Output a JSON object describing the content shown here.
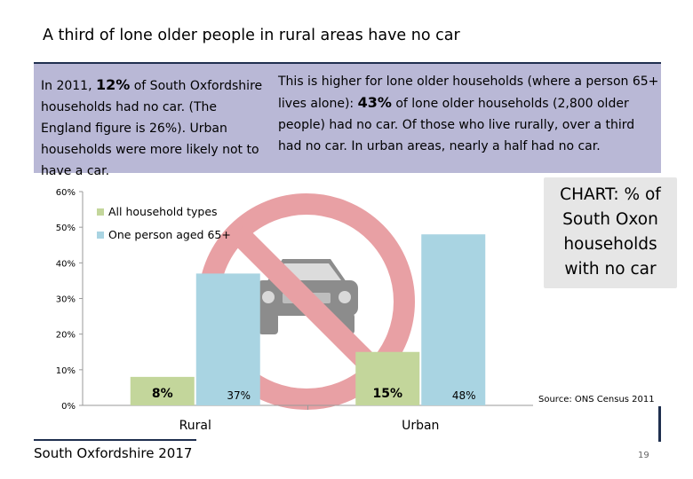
{
  "title": "A third of lone older people in rural areas have no car",
  "info": {
    "left_pre": "In 2011, ",
    "left_stat": "12%",
    "left_post": " of South Oxfordshire households had no car.  (The England figure is 26%).  Urban households were more likely not to have a car.",
    "right_pre": "This is higher for lone older households (where a person 65+ lives alone):  ",
    "right_stat": "43%",
    "right_post": " of lone older households (2,800 older people) had no car.  Of those who live rurally, over a third had no car.  In urban areas, nearly a half had no car."
  },
  "callout": "CHART: % of South Oxon households with no car",
  "source": "Source: ONS Census 2011",
  "footer": "South Oxfordshire  2017",
  "page_number": "19",
  "chart_data": {
    "type": "bar",
    "categories": [
      "Rural",
      "Urban"
    ],
    "series": [
      {
        "name": "All household types",
        "values": [
          8,
          15
        ],
        "labels": [
          "8%",
          "15%"
        ],
        "color": "#c3d69b"
      },
      {
        "name": "One person aged 65+",
        "values": [
          37,
          48
        ],
        "labels": [
          "37%",
          "48%"
        ],
        "color": "#a9d4e2"
      }
    ],
    "yticks": [
      "0%",
      "10%",
      "20%",
      "30%",
      "40%",
      "50%",
      "60%"
    ],
    "ylim": [
      0,
      60
    ],
    "legend": "top-left",
    "grid": false
  },
  "colors": {
    "info_box": "#b9b8d6",
    "sign_ring": "#e8a0a4",
    "car_body": "#8c8c8c",
    "rule": "#1f2f4f"
  },
  "icons": {
    "background_graphic": "no-car-sign-icon"
  }
}
